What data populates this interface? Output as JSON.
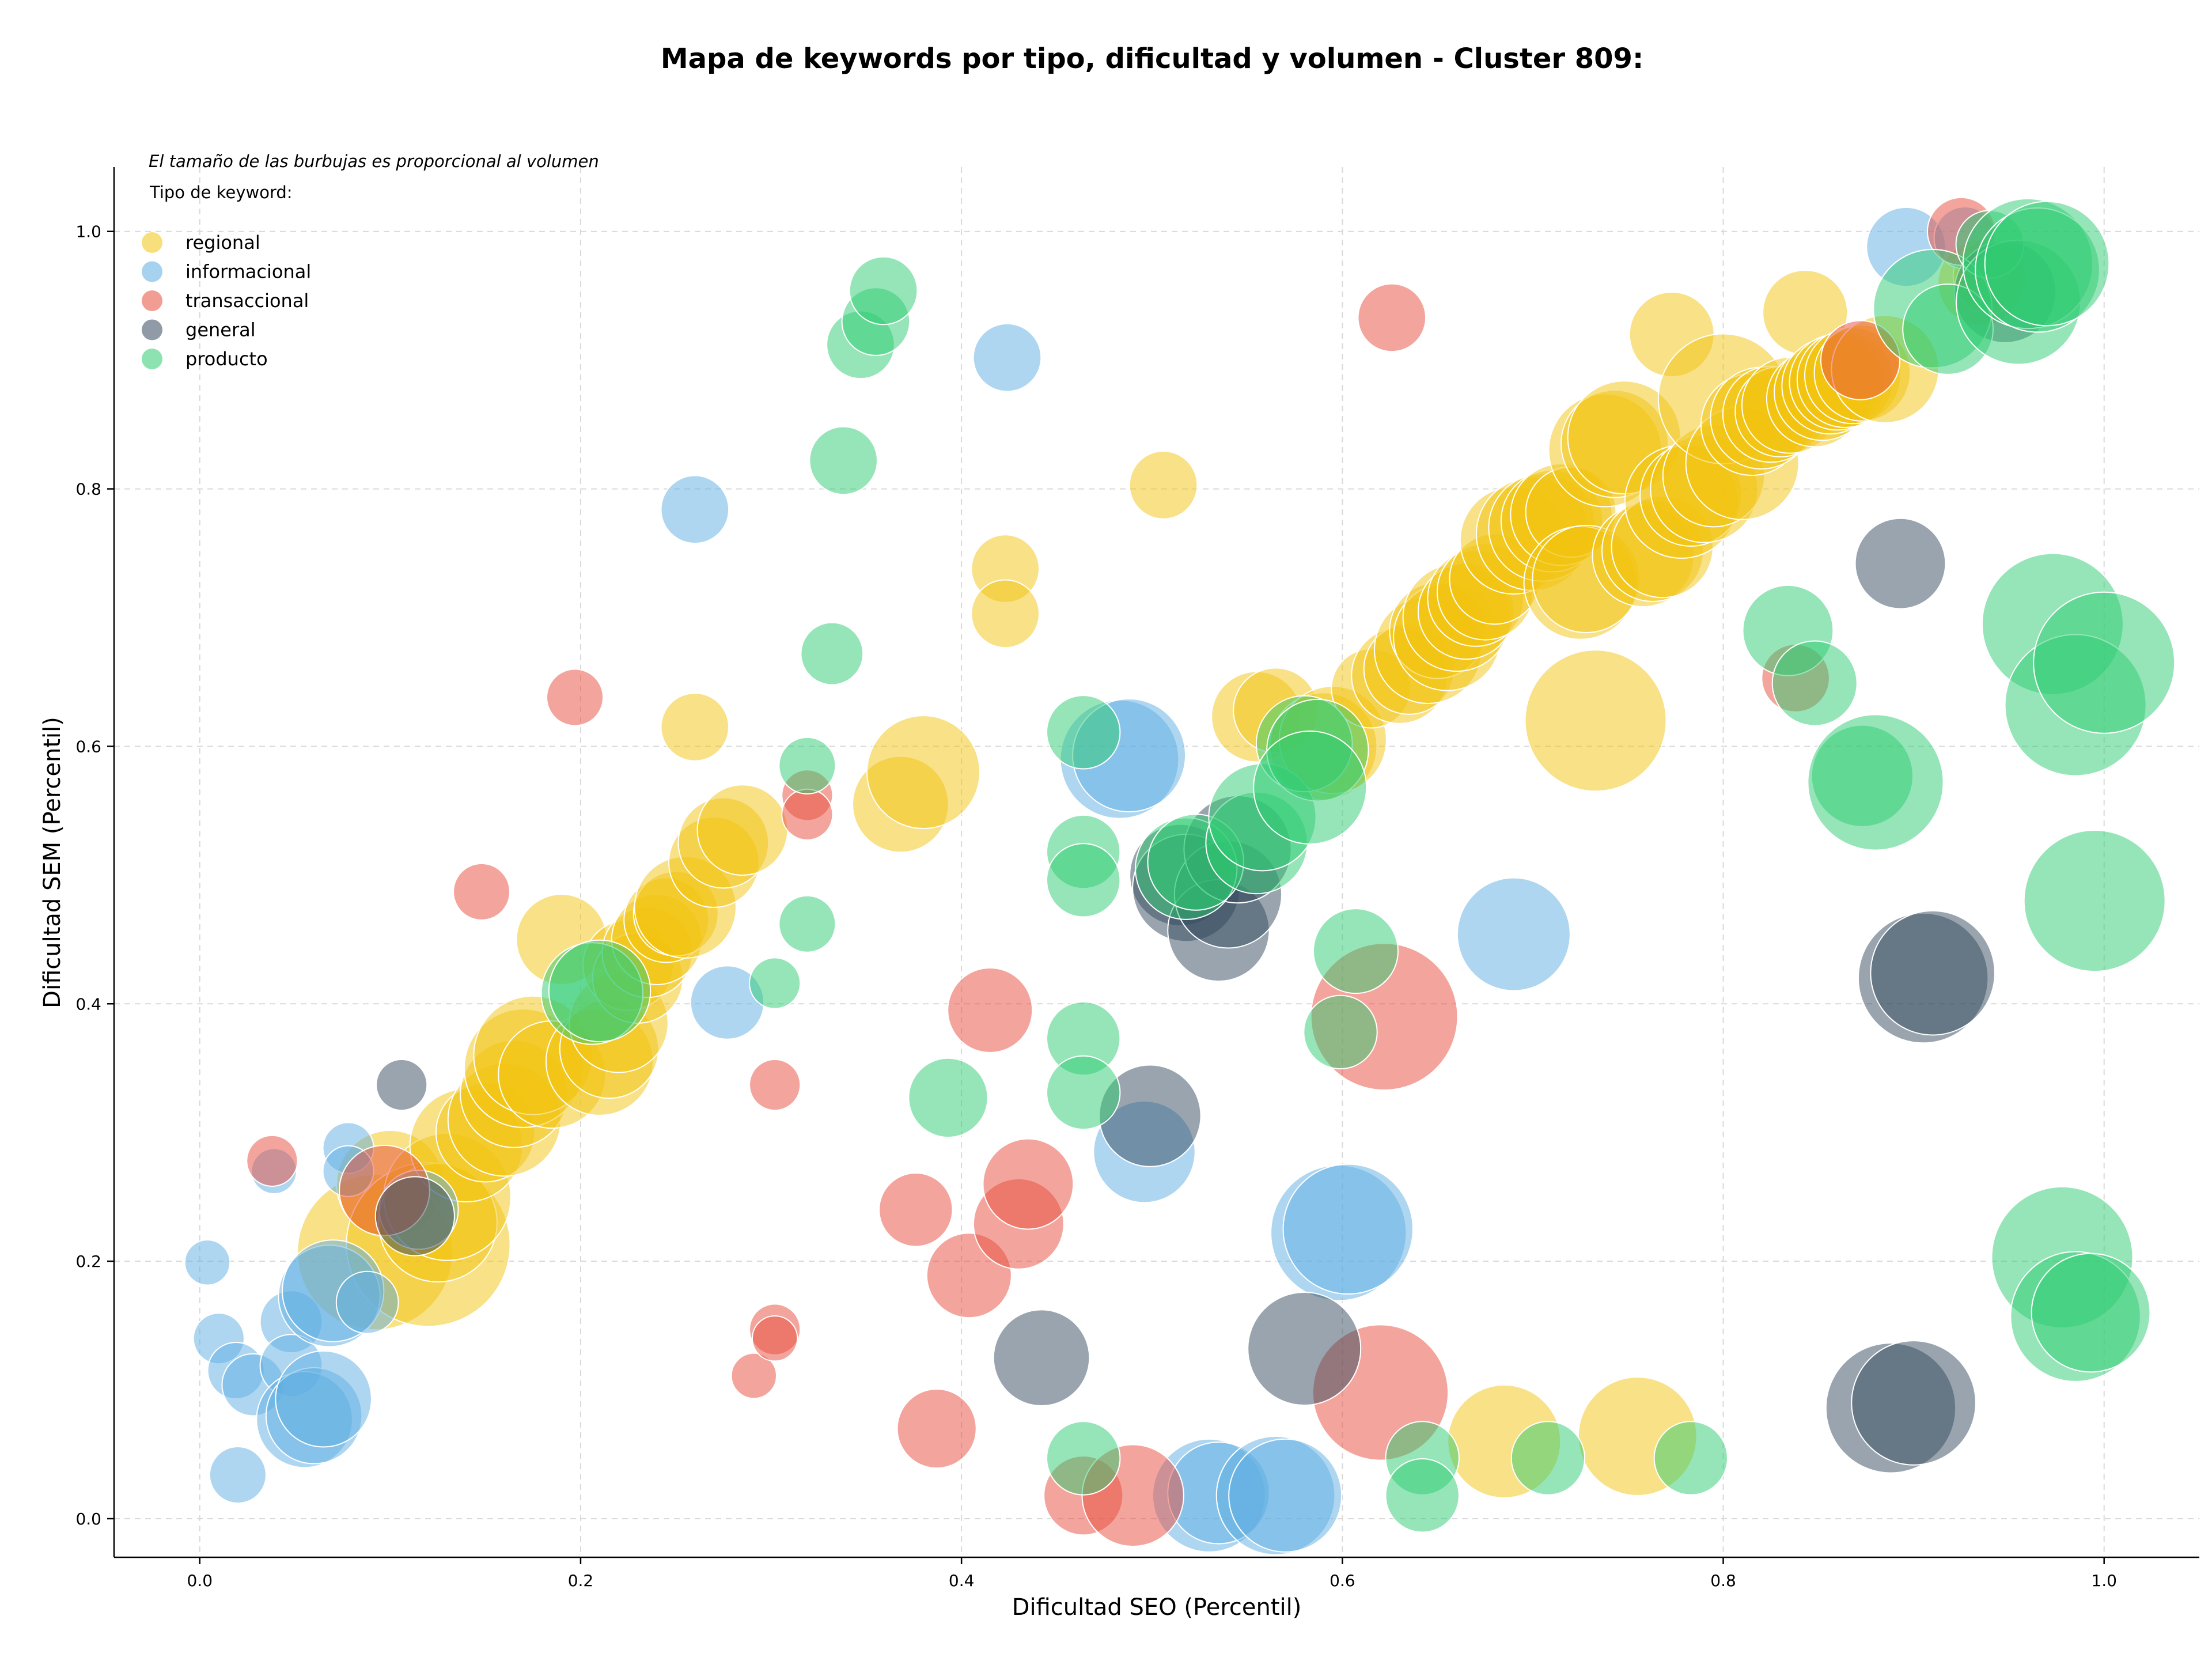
{
  "chart_data": {
    "type": "scatter",
    "title": "Mapa de keywords por tipo, dificultad y volumen - Cluster 809:",
    "xlabel": "Dificultad SEO (Percentil)",
    "ylabel": "Dificultad SEM (Percentil)",
    "xlim": [
      -0.045,
      1.05
    ],
    "ylim": [
      -0.03,
      1.05
    ],
    "xticks": [
      0.0,
      0.2,
      0.4,
      0.6,
      0.8,
      1.0
    ],
    "yticks": [
      0.0,
      0.2,
      0.4,
      0.6,
      0.8,
      1.0
    ],
    "xtick_labels": [
      "0.0",
      "0.2",
      "0.4",
      "0.6",
      "0.8",
      "1.0"
    ],
    "ytick_labels": [
      "0.0",
      "0.2",
      "0.4",
      "0.6",
      "0.8",
      "1.0"
    ],
    "grid": true,
    "size_note": "El tamaño de las burbujas es proporcional al volumen",
    "legend_title": "Tipo de keyword:",
    "legend_position": "top-left",
    "series": [
      {
        "name": "regional",
        "color": "#f1c40f",
        "points": [
          [
            0.092,
            0.207,
            55
          ],
          [
            0.1,
            0.26,
            38
          ],
          [
            0.12,
            0.213,
            58
          ],
          [
            0.125,
            0.23,
            42
          ],
          [
            0.13,
            0.25,
            45
          ],
          [
            0.14,
            0.29,
            40
          ],
          [
            0.15,
            0.3,
            35
          ],
          [
            0.16,
            0.31,
            40
          ],
          [
            0.165,
            0.33,
            38
          ],
          [
            0.17,
            0.35,
            42
          ],
          [
            0.175,
            0.36,
            42
          ],
          [
            0.185,
            0.345,
            38
          ],
          [
            0.19,
            0.45,
            32
          ],
          [
            0.21,
            0.355,
            38
          ],
          [
            0.215,
            0.365,
            35
          ],
          [
            0.22,
            0.385,
            35
          ],
          [
            0.225,
            0.43,
            32
          ],
          [
            0.23,
            0.42,
            32
          ],
          [
            0.235,
            0.44,
            32
          ],
          [
            0.24,
            0.45,
            32
          ],
          [
            0.245,
            0.465,
            30
          ],
          [
            0.25,
            0.47,
            30
          ],
          [
            0.255,
            0.475,
            36
          ],
          [
            0.26,
            0.615,
            24
          ],
          [
            0.27,
            0.51,
            32
          ],
          [
            0.275,
            0.525,
            32
          ],
          [
            0.285,
            0.535,
            32
          ],
          [
            0.368,
            0.555,
            34
          ],
          [
            0.38,
            0.58,
            40
          ],
          [
            0.423,
            0.738,
            24
          ],
          [
            0.423,
            0.703,
            24
          ],
          [
            0.506,
            0.803,
            24
          ],
          [
            0.555,
            0.623,
            32
          ],
          [
            0.565,
            0.628,
            30
          ],
          [
            0.59,
            0.6,
            38
          ],
          [
            0.595,
            0.605,
            38
          ],
          [
            0.615,
            0.645,
            28
          ],
          [
            0.63,
            0.655,
            34
          ],
          [
            0.635,
            0.66,
            32
          ],
          [
            0.645,
            0.675,
            38
          ],
          [
            0.65,
            0.69,
            34
          ],
          [
            0.655,
            0.685,
            38
          ],
          [
            0.66,
            0.7,
            38
          ],
          [
            0.665,
            0.705,
            34
          ],
          [
            0.67,
            0.715,
            34
          ],
          [
            0.675,
            0.72,
            34
          ],
          [
            0.68,
            0.73,
            32
          ],
          [
            0.69,
            0.76,
            38
          ],
          [
            0.7,
            0.765,
            40
          ],
          [
            0.705,
            0.77,
            38
          ],
          [
            0.71,
            0.775,
            36
          ],
          [
            0.715,
            0.78,
            36
          ],
          [
            0.72,
            0.782,
            32
          ],
          [
            0.725,
            0.727,
            40
          ],
          [
            0.728,
            0.73,
            38
          ],
          [
            0.733,
            0.62,
            50
          ],
          [
            0.738,
            0.83,
            40
          ],
          [
            0.743,
            0.835,
            38
          ],
          [
            0.748,
            0.84,
            40
          ],
          [
            0.758,
            0.748,
            36
          ],
          [
            0.763,
            0.752,
            36
          ],
          [
            0.768,
            0.755,
            36
          ],
          [
            0.773,
            0.92,
            30
          ],
          [
            0.778,
            0.79,
            40
          ],
          [
            0.783,
            0.795,
            36
          ],
          [
            0.79,
            0.8,
            38
          ],
          [
            0.795,
            0.81,
            36
          ],
          [
            0.8,
            0.87,
            46
          ],
          [
            0.81,
            0.82,
            40
          ],
          [
            0.815,
            0.85,
            36
          ],
          [
            0.82,
            0.855,
            36
          ],
          [
            0.825,
            0.858,
            34
          ],
          [
            0.83,
            0.86,
            32
          ],
          [
            0.835,
            0.865,
            34
          ],
          [
            0.843,
            0.937,
            30
          ],
          [
            0.848,
            0.87,
            34
          ],
          [
            0.852,
            0.875,
            34
          ],
          [
            0.856,
            0.88,
            34
          ],
          [
            0.86,
            0.883,
            34
          ],
          [
            0.864,
            0.885,
            34
          ],
          [
            0.868,
            0.888,
            34
          ],
          [
            0.873,
            0.89,
            34
          ],
          [
            0.885,
            0.893,
            38
          ],
          [
            0.935,
            0.96,
            30
          ],
          [
            0.94,
            0.965,
            26
          ],
          [
            0.685,
            0.06,
            40
          ],
          [
            0.755,
            0.064,
            42
          ]
        ]
      },
      {
        "name": "informacional",
        "color": "#5dade2",
        "points": [
          [
            0.004,
            0.199,
            16
          ],
          [
            0.01,
            0.14,
            18
          ],
          [
            0.019,
            0.115,
            20
          ],
          [
            0.02,
            0.034,
            20
          ],
          [
            0.028,
            0.104,
            22
          ],
          [
            0.039,
            0.27,
            16
          ],
          [
            0.048,
            0.153,
            22
          ],
          [
            0.048,
            0.119,
            22
          ],
          [
            0.055,
            0.077,
            34
          ],
          [
            0.06,
            0.08,
            34
          ],
          [
            0.065,
            0.093,
            34
          ],
          [
            0.068,
            0.173,
            36
          ],
          [
            0.07,
            0.177,
            36
          ],
          [
            0.078,
            0.288,
            18
          ],
          [
            0.078,
            0.27,
            18
          ],
          [
            0.088,
            0.168,
            22
          ],
          [
            0.115,
            0.24,
            28
          ],
          [
            0.26,
            0.784,
            24
          ],
          [
            0.277,
            0.401,
            26
          ],
          [
            0.424,
            0.902,
            24
          ],
          [
            0.483,
            0.59,
            42
          ],
          [
            0.488,
            0.593,
            40
          ],
          [
            0.496,
            0.285,
            36
          ],
          [
            0.53,
            0.018,
            40
          ],
          [
            0.535,
            0.02,
            36
          ],
          [
            0.565,
            0.018,
            42
          ],
          [
            0.57,
            0.018,
            40
          ],
          [
            0.598,
            0.222,
            48
          ],
          [
            0.603,
            0.225,
            46
          ],
          [
            0.69,
            0.454,
            40
          ],
          [
            0.896,
            0.988,
            28
          ],
          [
            0.927,
            0.995,
            22
          ]
        ]
      },
      {
        "name": "transaccional",
        "color": "#e74c3c",
        "points": [
          [
            0.038,
            0.278,
            18
          ],
          [
            0.097,
            0.255,
            32
          ],
          [
            0.148,
            0.487,
            20
          ],
          [
            0.197,
            0.638,
            20
          ],
          [
            0.291,
            0.111,
            16
          ],
          [
            0.302,
            0.337,
            18
          ],
          [
            0.302,
            0.147,
            18
          ],
          [
            0.302,
            0.14,
            16
          ],
          [
            0.319,
            0.562,
            18
          ],
          [
            0.319,
            0.547,
            18
          ],
          [
            0.376,
            0.24,
            26
          ],
          [
            0.387,
            0.07,
            28
          ],
          [
            0.404,
            0.189,
            30
          ],
          [
            0.415,
            0.395,
            30
          ],
          [
            0.43,
            0.229,
            32
          ],
          [
            0.435,
            0.26,
            32
          ],
          [
            0.464,
            0.018,
            28
          ],
          [
            0.49,
            0.018,
            36
          ],
          [
            0.62,
            0.098,
            48
          ],
          [
            0.622,
            0.39,
            52
          ],
          [
            0.626,
            0.933,
            24
          ],
          [
            0.838,
            0.653,
            24
          ],
          [
            0.872,
            0.9,
            28
          ],
          [
            0.925,
            1.0,
            24
          ]
        ]
      },
      {
        "name": "general",
        "color": "#34495e",
        "points": [
          [
            0.106,
            0.337,
            18
          ],
          [
            0.113,
            0.235,
            28
          ],
          [
            0.442,
            0.125,
            34
          ],
          [
            0.499,
            0.313,
            36
          ],
          [
            0.515,
            0.5,
            36
          ],
          [
            0.518,
            0.49,
            38
          ],
          [
            0.535,
            0.457,
            36
          ],
          [
            0.54,
            0.485,
            38
          ],
          [
            0.545,
            0.52,
            38
          ],
          [
            0.58,
            0.132,
            40
          ],
          [
            0.893,
            0.742,
            32
          ],
          [
            0.888,
            0.086,
            46
          ],
          [
            0.9,
            0.09,
            44
          ],
          [
            0.905,
            0.42,
            46
          ],
          [
            0.91,
            0.424,
            44
          ],
          [
            0.948,
            0.953,
            36
          ]
        ]
      },
      {
        "name": "producto",
        "color": "#2ecc71",
        "points": [
          [
            0.206,
            0.408,
            36
          ],
          [
            0.21,
            0.41,
            36
          ],
          [
            0.302,
            0.416,
            18
          ],
          [
            0.319,
            0.585,
            20
          ],
          [
            0.319,
            0.462,
            20
          ],
          [
            0.332,
            0.672,
            22
          ],
          [
            0.338,
            0.822,
            24
          ],
          [
            0.347,
            0.912,
            24
          ],
          [
            0.355,
            0.93,
            24
          ],
          [
            0.359,
            0.954,
            24
          ],
          [
            0.393,
            0.327,
            28
          ],
          [
            0.464,
            0.611,
            26
          ],
          [
            0.464,
            0.518,
            26
          ],
          [
            0.464,
            0.496,
            26
          ],
          [
            0.464,
            0.373,
            26
          ],
          [
            0.464,
            0.331,
            26
          ],
          [
            0.464,
            0.047,
            26
          ],
          [
            0.518,
            0.505,
            36
          ],
          [
            0.523,
            0.51,
            34
          ],
          [
            0.555,
            0.525,
            36
          ],
          [
            0.558,
            0.545,
            38
          ],
          [
            0.58,
            0.602,
            34
          ],
          [
            0.587,
            0.597,
            36
          ],
          [
            0.583,
            0.568,
            40
          ],
          [
            0.599,
            0.378,
            26
          ],
          [
            0.607,
            0.441,
            30
          ],
          [
            0.642,
            0.047,
            26
          ],
          [
            0.642,
            0.018,
            26
          ],
          [
            0.708,
            0.047,
            26
          ],
          [
            0.783,
            0.047,
            26
          ],
          [
            0.834,
            0.69,
            32
          ],
          [
            0.848,
            0.649,
            30
          ],
          [
            0.873,
            0.577,
            36
          ],
          [
            0.88,
            0.572,
            48
          ],
          [
            0.91,
            0.94,
            42
          ],
          [
            0.918,
            0.924,
            32
          ],
          [
            0.94,
            0.99,
            24
          ],
          [
            0.955,
            0.945,
            44
          ],
          [
            0.96,
            0.975,
            46
          ],
          [
            0.965,
            0.97,
            44
          ],
          [
            0.97,
            0.975,
            44
          ],
          [
            0.973,
            0.695,
            50
          ],
          [
            0.978,
            0.203,
            50
          ],
          [
            0.985,
            0.632,
            50
          ],
          [
            0.985,
            0.157,
            46
          ],
          [
            0.993,
            0.16,
            42
          ],
          [
            0.995,
            0.48,
            50
          ],
          [
            1.0,
            0.665,
            50
          ]
        ]
      }
    ]
  }
}
